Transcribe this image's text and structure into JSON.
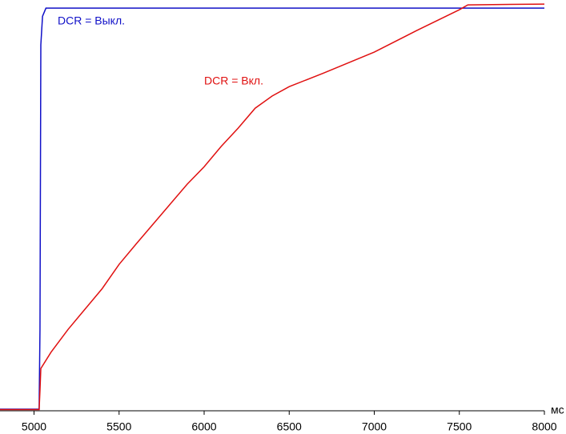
{
  "chart_data": {
    "type": "line",
    "x_label": "мс",
    "xlim": [
      4800,
      8000
    ],
    "xticks": [
      5000,
      5500,
      6000,
      6500,
      7000,
      7500,
      8000
    ],
    "ylim": [
      0,
      101
    ],
    "series": [
      {
        "name": "DCR = Выкл.",
        "color": "#1010c8",
        "x": [
          4800,
          5030,
          5035,
          5040,
          5050,
          5070,
          5100,
          6000,
          7000,
          8000
        ],
        "values": [
          0.4,
          0.4,
          20,
          90,
          97,
          99,
          99,
          99,
          99,
          99
        ]
      },
      {
        "name": "DCR = Вкл.",
        "color": "#e01010",
        "x": [
          4800,
          5030,
          5035,
          5040,
          5100,
          5200,
          5300,
          5400,
          5500,
          5600,
          5700,
          5800,
          5900,
          6000,
          6100,
          6200,
          6300,
          6400,
          6500,
          6700,
          7000,
          7250,
          7500,
          7550,
          8000
        ],
        "values": [
          0.3,
          0.3,
          5,
          10.4,
          14.4,
          20,
          25,
          30,
          36,
          41,
          45.9,
          50.8,
          55.7,
          60,
          65,
          69.5,
          74.4,
          77.4,
          79.7,
          83,
          88.2,
          93.5,
          98.6,
          99.8,
          100
        ]
      }
    ]
  }
}
